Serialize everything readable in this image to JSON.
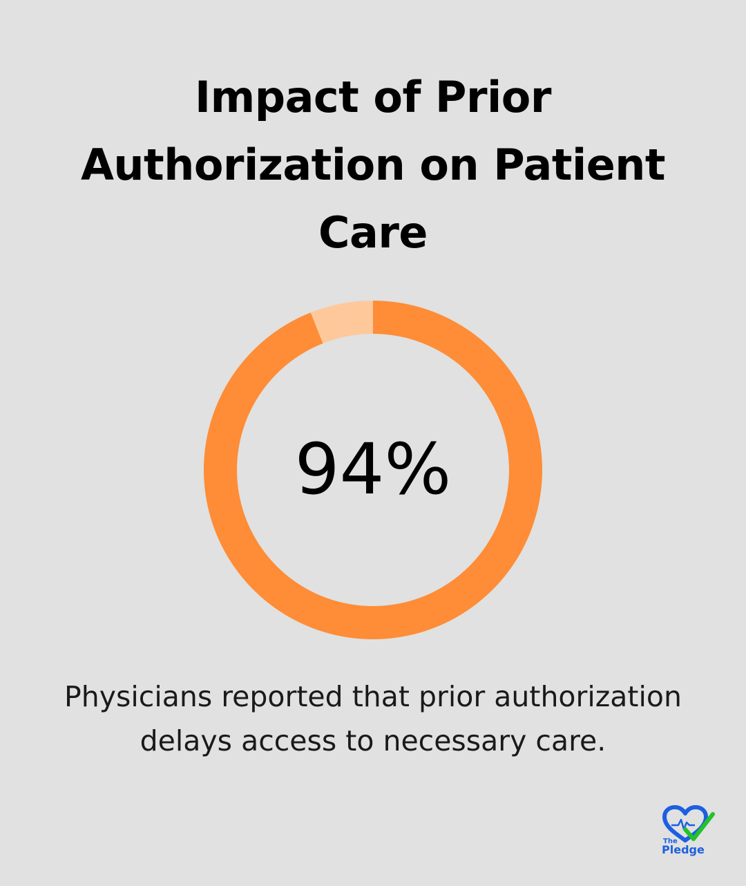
{
  "title": "Impact of Prior Authorization on Patient Care",
  "chart_data": {
    "type": "pie",
    "value_label": "94%",
    "slices": [
      {
        "value": 94,
        "color": "#ff8c36"
      },
      {
        "value": 6,
        "color": "#fec89b"
      }
    ]
  },
  "caption": "Physicians reported that prior authorization delays access to necessary care.",
  "logo": {
    "small_text": "The",
    "big_text": "Pledge",
    "heart_color": "#1d5fe0",
    "check_color": "#22c22c"
  },
  "colors": {
    "background": "#e0e1e0",
    "accent": "#ff8c36",
    "accent_light": "#fec89b"
  }
}
